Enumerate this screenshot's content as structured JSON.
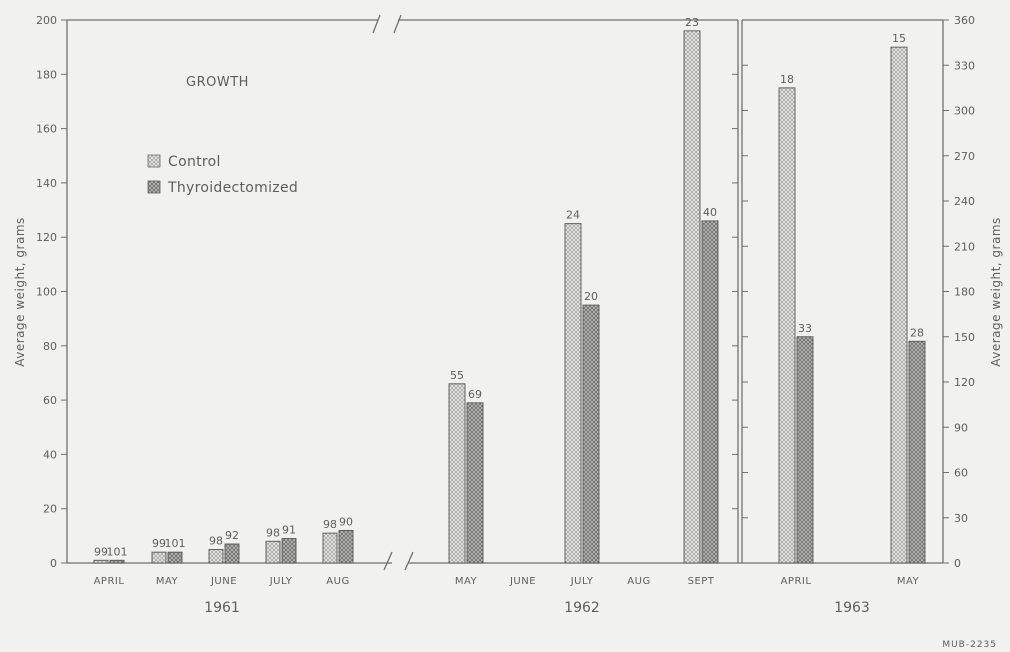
{
  "chart_data": {
    "type": "bar",
    "title": "GROWTH",
    "ylabel_left": "Average weight, grams",
    "ylabel_right": "Average weight, grams",
    "left_axis": {
      "ylim": [
        0,
        200
      ],
      "ticks": [
        "0",
        "20",
        "40",
        "60",
        "80",
        "100",
        "120",
        "140",
        "160",
        "180",
        "200"
      ]
    },
    "right_axis": {
      "ylim": [
        0,
        360
      ],
      "ticks": [
        "0",
        "30",
        "60",
        "90",
        "120",
        "150",
        "180",
        "210",
        "240",
        "270",
        "300",
        "330",
        "360"
      ]
    },
    "legend": {
      "placement": "upper-left",
      "entries": [
        {
          "name": "Control",
          "pattern": "crosshatch-light"
        },
        {
          "name": "Thyroidectomized",
          "pattern": "crosshatch-dark"
        }
      ]
    },
    "series": [
      {
        "name": "Control"
      },
      {
        "name": "Thyroidectomized"
      }
    ],
    "panels": [
      {
        "year": "1961",
        "axis": "left",
        "months": [
          {
            "month": "APRIL",
            "values": [
              1,
              1
            ],
            "labels": [
              "99",
              "101"
            ]
          },
          {
            "month": "MAY",
            "values": [
              4,
              4
            ],
            "labels": [
              "99",
              "101"
            ]
          },
          {
            "month": "JUNE",
            "values": [
              5,
              7
            ],
            "labels": [
              "98",
              "92"
            ]
          },
          {
            "month": "JULY",
            "values": [
              8,
              9
            ],
            "labels": [
              "98",
              "91"
            ]
          },
          {
            "month": "AUG",
            "values": [
              11,
              12
            ],
            "labels": [
              "98",
              "90"
            ]
          }
        ]
      },
      {
        "year": "1962",
        "axis": "left",
        "months": [
          {
            "month": "MAY",
            "values": [
              66,
              59
            ],
            "labels": [
              "55",
              "69"
            ]
          },
          {
            "month": "JUNE",
            "values": null,
            "labels": null
          },
          {
            "month": "JULY",
            "values": [
              125,
              95
            ],
            "labels": [
              "24",
              "20"
            ]
          },
          {
            "month": "AUG",
            "values": null,
            "labels": null
          },
          {
            "month": "SEPT",
            "values": [
              196,
              126
            ],
            "labels": [
              "23",
              "40"
            ]
          }
        ]
      },
      {
        "year": "1963",
        "axis": "right",
        "months": [
          {
            "month": "APRIL",
            "values": [
              315,
              150
            ],
            "labels": [
              "18",
              "33"
            ]
          },
          {
            "month": "MAY",
            "values": [
              342,
              147
            ],
            "labels": [
              "15",
              "28"
            ]
          }
        ]
      }
    ],
    "footnote": "MUB-2235"
  }
}
